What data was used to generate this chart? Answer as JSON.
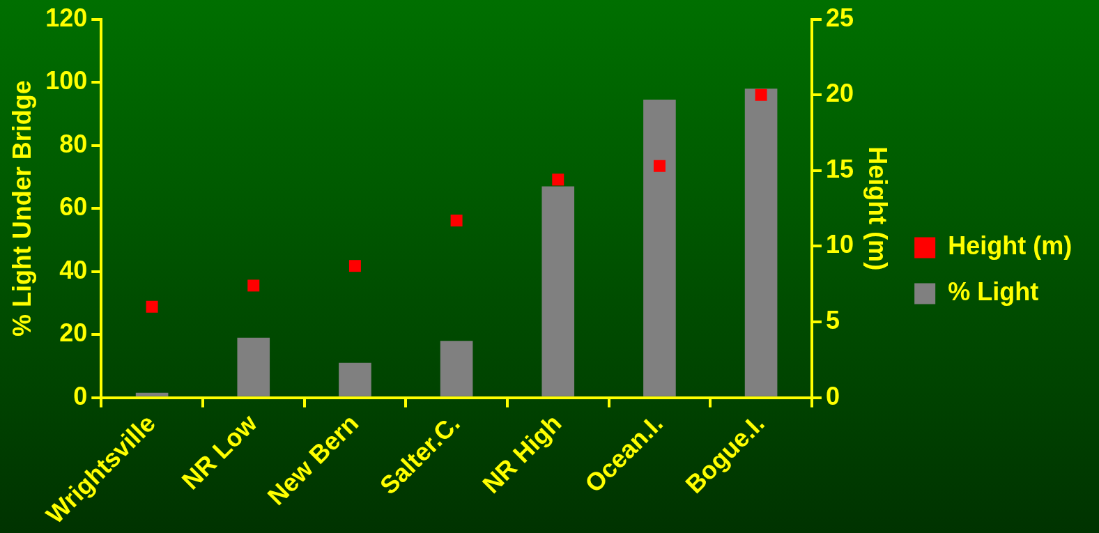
{
  "chart_data": {
    "type": "bar",
    "ylabel": "% Light Under Bridge",
    "y2label": "Height (m)",
    "categories": [
      "Wrightsville",
      "NR Low",
      "New Bern",
      "Salter.C.",
      "NR High",
      "Ocean.I.",
      "Bogue.I."
    ],
    "series": [
      {
        "name": "% Light",
        "color": "#808080",
        "values": [
          1.5,
          19,
          11,
          18,
          67,
          94.5,
          98
        ]
      },
      {
        "name": "Height (m)",
        "type": "scatter",
        "axis": "y2",
        "color": "#ff0000",
        "values": [
          6,
          7.4,
          8.7,
          11.7,
          14.4,
          15.3,
          20
        ]
      }
    ],
    "ylim": [
      0,
      120
    ],
    "yticks": [
      0,
      20,
      40,
      60,
      80,
      100,
      120
    ],
    "y2lim": [
      0,
      25
    ],
    "y2ticks": [
      0,
      5,
      10,
      15,
      20,
      25
    ],
    "legend": "right",
    "grid": false,
    "marker": "square"
  }
}
